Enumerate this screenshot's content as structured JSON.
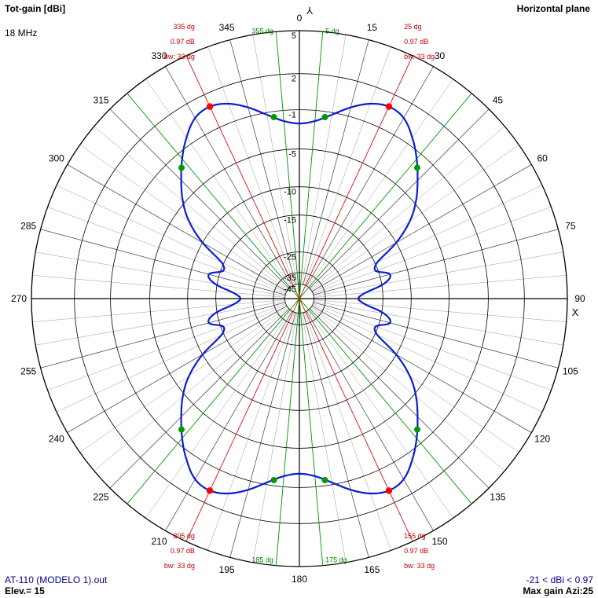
{
  "header": {
    "left_title": "Tot-gain [dBi]",
    "frequency": "18 MHz",
    "right_title": "Horizontal plane"
  },
  "footer": {
    "file_name": "AT-110 (MODELO 1).out",
    "elevation": "Elev.= 15",
    "gain_range": "-21 < dBi < 0.97",
    "max_gain": "Max gain Azi:25"
  },
  "colors": {
    "pattern": "#0a1ecf",
    "marker_main": "#ff0000",
    "marker_side": "#009900",
    "beam_line_red": "#e01010",
    "beam_line_green": "#009900",
    "annotation_red": "#c00000",
    "annotation_green": "#008800",
    "grid_circle": "#000000",
    "grid_spoke": "#999999",
    "axis": "#000000"
  },
  "axis_markers": {
    "x_axis": "X",
    "y_axis": "Y"
  },
  "chart_data": {
    "type": "polar",
    "angle_unit": "degrees (0 at top, clockwise)",
    "angle_ticks": [
      "0",
      "15",
      "30",
      "45",
      "60",
      "75",
      "90",
      "105",
      "120",
      "135",
      "150",
      "165",
      "180",
      "195",
      "210",
      "225",
      "240",
      "255",
      "270",
      "285",
      "300",
      "315",
      "330",
      "345"
    ],
    "radial_ticks": [
      "5",
      "2",
      "-1",
      "-5",
      "-10",
      "-15",
      "-25",
      "-35",
      "-45"
    ],
    "series": [
      {
        "azimuth": [
          0,
          5,
          10,
          15,
          20,
          25,
          30,
          35,
          40,
          45,
          50,
          55,
          60,
          65,
          70,
          75,
          80,
          85,
          90,
          95,
          100,
          105,
          110,
          115,
          120,
          125,
          130,
          135,
          140,
          145,
          150,
          155,
          160,
          165,
          170,
          175,
          180,
          185,
          190,
          195,
          200,
          205,
          210,
          215,
          220,
          225,
          230,
          235,
          240,
          245,
          250,
          255,
          260,
          265,
          270,
          275,
          280,
          285,
          290,
          295,
          300,
          305,
          310,
          315,
          320,
          325,
          330,
          335,
          340,
          345,
          350,
          355
        ],
        "gain_dbi": [
          -2.3,
          -2.0,
          -1.2,
          -0.2,
          0.6,
          0.97,
          0.7,
          -0.3,
          -1.6,
          -3.1,
          -4.7,
          -6.8,
          -10.0,
          -14.5,
          -15.5,
          -13.0,
          -14.5,
          -19.0,
          -21.0,
          -19.0,
          -14.5,
          -13.0,
          -15.5,
          -14.5,
          -10.0,
          -6.8,
          -4.7,
          -3.1,
          -1.6,
          -0.3,
          0.7,
          0.97,
          0.6,
          -0.2,
          -1.2,
          -2.0,
          -2.3,
          -2.0,
          -1.2,
          -0.2,
          0.6,
          0.97,
          0.7,
          -0.3,
          -1.6,
          -3.1,
          -4.7,
          -6.8,
          -10.0,
          -14.5,
          -15.5,
          -13.0,
          -14.5,
          -19.0,
          -21.0,
          -19.0,
          -14.5,
          -13.0,
          -15.5,
          -14.5,
          -10.0,
          -6.8,
          -4.7,
          -3.1,
          -1.6,
          -0.3,
          0.7,
          0.97,
          0.6,
          -0.2,
          -1.2,
          -2.0
        ]
      }
    ],
    "main_lobes": [
      {
        "azimuth": 25,
        "angle_label": "25 dg",
        "gain_label": "0.97 dB",
        "bw_label": "bw: 33 dg"
      },
      {
        "azimuth": 155,
        "angle_label": "155 dg",
        "gain_label": "0.97 dB",
        "bw_label": "bw: 33 dg"
      },
      {
        "azimuth": 205,
        "angle_label": "205 dg",
        "gain_label": "0.97 dB",
        "bw_label": "bw: 33 dg"
      },
      {
        "azimuth": 335,
        "angle_label": "335 dg",
        "gain_label": "0.97 dB",
        "bw_label": "bw: 33 dg"
      }
    ],
    "half_power_points": [
      8,
      42,
      138,
      172,
      188,
      222,
      318,
      352
    ],
    "green_lines": [
      {
        "azimuth": 5,
        "label": "5 dg"
      },
      {
        "azimuth": 355,
        "label": "355 dg"
      },
      {
        "azimuth": 175,
        "label": "175 dg"
      },
      {
        "azimuth": 185,
        "label": "185 dg"
      },
      {
        "azimuth": 40
      },
      {
        "azimuth": 140
      },
      {
        "azimuth": 220
      },
      {
        "azimuth": 320
      }
    ]
  }
}
